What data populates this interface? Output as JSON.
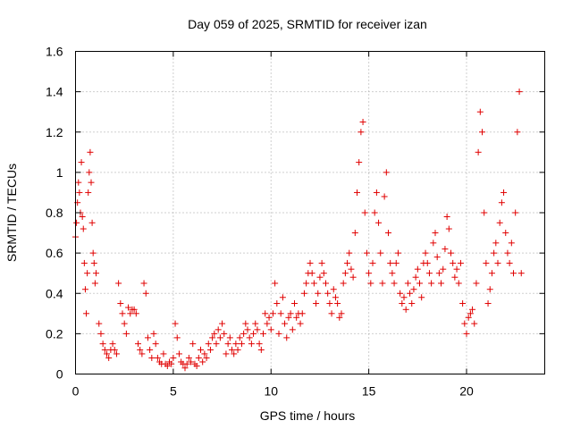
{
  "chart_data": {
    "type": "scatter",
    "title": "Day 059 of 2025, SRMTID for receiver izan",
    "xlabel": "GPS time / hours",
    "ylabel": "SRMTID / TECUs",
    "xlim": [
      0,
      24
    ],
    "ylim": [
      0,
      1.6
    ],
    "xticks": [
      0,
      5,
      10,
      15,
      20
    ],
    "xtick_labels": [
      "0",
      "5",
      "10",
      "15",
      "20"
    ],
    "yticks": [
      0,
      0.2,
      0.4,
      0.6,
      0.8,
      1,
      1.2,
      1.4,
      1.6
    ],
    "ytick_labels": [
      "0",
      "0.2",
      "0.4",
      "0.6",
      "0.8",
      "1",
      "1.2",
      "1.4",
      "1.6"
    ],
    "grid": true,
    "marker": "+",
    "marker_color": "#e00000",
    "series": [
      {
        "name": "SRMTID",
        "points": [
          [
            0.0,
            0.68
          ],
          [
            0.05,
            0.75
          ],
          [
            0.1,
            0.85
          ],
          [
            0.15,
            0.95
          ],
          [
            0.2,
            0.9
          ],
          [
            0.25,
            0.8
          ],
          [
            0.3,
            1.05
          ],
          [
            0.35,
            0.78
          ],
          [
            0.4,
            0.72
          ],
          [
            0.45,
            0.55
          ],
          [
            0.5,
            0.42
          ],
          [
            0.55,
            0.3
          ],
          [
            0.6,
            0.5
          ],
          [
            0.65,
            0.9
          ],
          [
            0.7,
            1.0
          ],
          [
            0.75,
            1.1
          ],
          [
            0.8,
            0.95
          ],
          [
            0.85,
            0.75
          ],
          [
            0.9,
            0.6
          ],
          [
            0.95,
            0.55
          ],
          [
            1.0,
            0.45
          ],
          [
            1.05,
            0.5
          ],
          [
            1.2,
            0.25
          ],
          [
            1.3,
            0.2
          ],
          [
            1.4,
            0.15
          ],
          [
            1.5,
            0.12
          ],
          [
            1.6,
            0.1
          ],
          [
            1.7,
            0.08
          ],
          [
            1.8,
            0.12
          ],
          [
            1.9,
            0.15
          ],
          [
            2.0,
            0.12
          ],
          [
            2.1,
            0.1
          ],
          [
            2.2,
            0.45
          ],
          [
            2.3,
            0.35
          ],
          [
            2.4,
            0.3
          ],
          [
            2.5,
            0.25
          ],
          [
            2.6,
            0.2
          ],
          [
            2.7,
            0.33
          ],
          [
            2.8,
            0.3
          ],
          [
            2.9,
            0.32
          ],
          [
            3.0,
            0.32
          ],
          [
            3.1,
            0.3
          ],
          [
            3.2,
            0.15
          ],
          [
            3.3,
            0.12
          ],
          [
            3.4,
            0.1
          ],
          [
            3.5,
            0.45
          ],
          [
            3.6,
            0.4
          ],
          [
            3.7,
            0.18
          ],
          [
            3.8,
            0.12
          ],
          [
            3.9,
            0.08
          ],
          [
            4.0,
            0.2
          ],
          [
            4.1,
            0.15
          ],
          [
            4.2,
            0.08
          ],
          [
            4.3,
            0.06
          ],
          [
            4.4,
            0.05
          ],
          [
            4.5,
            0.1
          ],
          [
            4.6,
            0.05
          ],
          [
            4.7,
            0.04
          ],
          [
            4.8,
            0.06
          ],
          [
            4.9,
            0.05
          ],
          [
            5.0,
            0.08
          ],
          [
            5.1,
            0.25
          ],
          [
            5.2,
            0.18
          ],
          [
            5.3,
            0.1
          ],
          [
            5.4,
            0.06
          ],
          [
            5.5,
            0.05
          ],
          [
            5.6,
            0.03
          ],
          [
            5.7,
            0.05
          ],
          [
            5.8,
            0.08
          ],
          [
            5.9,
            0.06
          ],
          [
            6.0,
            0.15
          ],
          [
            6.1,
            0.05
          ],
          [
            6.2,
            0.04
          ],
          [
            6.3,
            0.08
          ],
          [
            6.4,
            0.12
          ],
          [
            6.5,
            0.06
          ],
          [
            6.6,
            0.1
          ],
          [
            6.7,
            0.08
          ],
          [
            6.8,
            0.15
          ],
          [
            6.9,
            0.12
          ],
          [
            7.0,
            0.18
          ],
          [
            7.1,
            0.2
          ],
          [
            7.2,
            0.15
          ],
          [
            7.3,
            0.22
          ],
          [
            7.4,
            0.18
          ],
          [
            7.5,
            0.25
          ],
          [
            7.6,
            0.2
          ],
          [
            7.7,
            0.1
          ],
          [
            7.8,
            0.15
          ],
          [
            7.9,
            0.18
          ],
          [
            8.0,
            0.12
          ],
          [
            8.1,
            0.1
          ],
          [
            8.2,
            0.15
          ],
          [
            8.3,
            0.12
          ],
          [
            8.4,
            0.18
          ],
          [
            8.5,
            0.15
          ],
          [
            8.6,
            0.2
          ],
          [
            8.7,
            0.25
          ],
          [
            8.8,
            0.22
          ],
          [
            8.9,
            0.18
          ],
          [
            9.0,
            0.15
          ],
          [
            9.1,
            0.2
          ],
          [
            9.2,
            0.25
          ],
          [
            9.3,
            0.22
          ],
          [
            9.4,
            0.15
          ],
          [
            9.5,
            0.12
          ],
          [
            9.6,
            0.2
          ],
          [
            9.7,
            0.3
          ],
          [
            9.8,
            0.25
          ],
          [
            9.9,
            0.28
          ],
          [
            10.0,
            0.22
          ],
          [
            10.1,
            0.3
          ],
          [
            10.2,
            0.45
          ],
          [
            10.3,
            0.35
          ],
          [
            10.4,
            0.2
          ],
          [
            10.5,
            0.3
          ],
          [
            10.6,
            0.38
          ],
          [
            10.7,
            0.25
          ],
          [
            10.8,
            0.18
          ],
          [
            10.9,
            0.28
          ],
          [
            11.0,
            0.3
          ],
          [
            11.1,
            0.22
          ],
          [
            11.2,
            0.35
          ],
          [
            11.3,
            0.28
          ],
          [
            11.4,
            0.3
          ],
          [
            11.5,
            0.25
          ],
          [
            11.6,
            0.3
          ],
          [
            11.7,
            0.4
          ],
          [
            11.8,
            0.45
          ],
          [
            11.9,
            0.5
          ],
          [
            12.0,
            0.55
          ],
          [
            12.1,
            0.5
          ],
          [
            12.2,
            0.45
          ],
          [
            12.3,
            0.35
          ],
          [
            12.4,
            0.4
          ],
          [
            12.5,
            0.48
          ],
          [
            12.6,
            0.55
          ],
          [
            12.7,
            0.5
          ],
          [
            12.8,
            0.45
          ],
          [
            12.9,
            0.4
          ],
          [
            13.0,
            0.35
          ],
          [
            13.1,
            0.3
          ],
          [
            13.2,
            0.42
          ],
          [
            13.3,
            0.38
          ],
          [
            13.4,
            0.35
          ],
          [
            13.5,
            0.28
          ],
          [
            13.6,
            0.3
          ],
          [
            13.7,
            0.45
          ],
          [
            13.8,
            0.5
          ],
          [
            13.9,
            0.55
          ],
          [
            14.0,
            0.6
          ],
          [
            14.1,
            0.52
          ],
          [
            14.2,
            0.48
          ],
          [
            14.3,
            0.7
          ],
          [
            14.4,
            0.9
          ],
          [
            14.5,
            1.05
          ],
          [
            14.6,
            1.2
          ],
          [
            14.7,
            1.25
          ],
          [
            14.8,
            0.8
          ],
          [
            14.9,
            0.6
          ],
          [
            15.0,
            0.5
          ],
          [
            15.1,
            0.45
          ],
          [
            15.2,
            0.55
          ],
          [
            15.3,
            0.8
          ],
          [
            15.4,
            0.9
          ],
          [
            15.5,
            0.75
          ],
          [
            15.6,
            0.6
          ],
          [
            15.7,
            0.45
          ],
          [
            15.8,
            0.88
          ],
          [
            15.9,
            1.0
          ],
          [
            16.0,
            0.7
          ],
          [
            16.1,
            0.55
          ],
          [
            16.2,
            0.5
          ],
          [
            16.3,
            0.45
          ],
          [
            16.4,
            0.55
          ],
          [
            16.5,
            0.6
          ],
          [
            16.6,
            0.4
          ],
          [
            16.7,
            0.35
          ],
          [
            16.8,
            0.38
          ],
          [
            16.9,
            0.32
          ],
          [
            17.0,
            0.45
          ],
          [
            17.1,
            0.4
          ],
          [
            17.2,
            0.35
          ],
          [
            17.3,
            0.42
          ],
          [
            17.4,
            0.48
          ],
          [
            17.5,
            0.52
          ],
          [
            17.6,
            0.45
          ],
          [
            17.7,
            0.38
          ],
          [
            17.8,
            0.55
          ],
          [
            17.9,
            0.6
          ],
          [
            18.0,
            0.55
          ],
          [
            18.1,
            0.5
          ],
          [
            18.2,
            0.45
          ],
          [
            18.3,
            0.65
          ],
          [
            18.4,
            0.7
          ],
          [
            18.5,
            0.58
          ],
          [
            18.6,
            0.5
          ],
          [
            18.7,
            0.45
          ],
          [
            18.8,
            0.52
          ],
          [
            18.9,
            0.62
          ],
          [
            19.0,
            0.78
          ],
          [
            19.1,
            0.72
          ],
          [
            19.2,
            0.6
          ],
          [
            19.3,
            0.55
          ],
          [
            19.4,
            0.48
          ],
          [
            19.5,
            0.52
          ],
          [
            19.6,
            0.45
          ],
          [
            19.7,
            0.55
          ],
          [
            19.8,
            0.35
          ],
          [
            19.9,
            0.25
          ],
          [
            20.0,
            0.2
          ],
          [
            20.1,
            0.28
          ],
          [
            20.2,
            0.3
          ],
          [
            20.3,
            0.32
          ],
          [
            20.4,
            0.25
          ],
          [
            20.5,
            0.45
          ],
          [
            20.6,
            1.1
          ],
          [
            20.7,
            1.3
          ],
          [
            20.8,
            1.2
          ],
          [
            20.9,
            0.8
          ],
          [
            21.0,
            0.55
          ],
          [
            21.1,
            0.35
          ],
          [
            21.2,
            0.42
          ],
          [
            21.3,
            0.5
          ],
          [
            21.4,
            0.6
          ],
          [
            21.5,
            0.65
          ],
          [
            21.6,
            0.55
          ],
          [
            21.7,
            0.75
          ],
          [
            21.8,
            0.85
          ],
          [
            21.9,
            0.9
          ],
          [
            22.0,
            0.7
          ],
          [
            22.1,
            0.6
          ],
          [
            22.2,
            0.55
          ],
          [
            22.3,
            0.65
          ],
          [
            22.4,
            0.5
          ],
          [
            22.5,
            0.8
          ],
          [
            22.6,
            1.2
          ],
          [
            22.7,
            1.4
          ],
          [
            22.8,
            0.5
          ]
        ]
      }
    ]
  }
}
